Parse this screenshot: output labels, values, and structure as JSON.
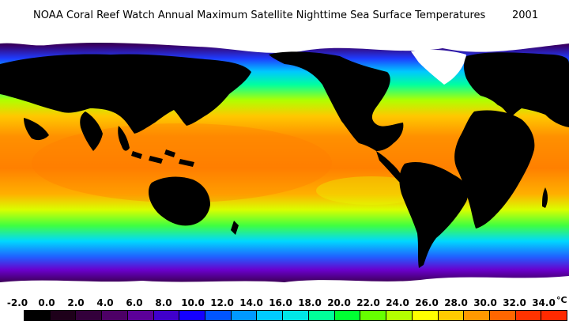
{
  "title": "NOAA Coral Reef Watch Annual Maximum Satellite Nighttime Sea Surface Temperatures",
  "year": "2001",
  "scale": {
    "labels": [
      "-2.0",
      "0.0",
      "2.0",
      "4.0",
      "6.0",
      "8.0",
      "10.0",
      "12.0",
      "14.0",
      "16.0",
      "18.0",
      "20.0",
      "22.0",
      "24.0",
      "26.0",
      "28.0",
      "30.0",
      "32.0",
      "34.0"
    ],
    "unit": "°C",
    "min": -2.0,
    "max": 34.0,
    "colors": [
      "#000000",
      "#1e001a",
      "#33003b",
      "#4d0066",
      "#5c0099",
      "#4000cc",
      "#1400ff",
      "#0055ff",
      "#0099ff",
      "#00ccff",
      "#00e6e6",
      "#00ff99",
      "#00ff33",
      "#66ff00",
      "#b3ff00",
      "#ffff00",
      "#ffcc00",
      "#ff9900",
      "#ff6600",
      "#ff3300",
      "#ff2a00"
    ]
  }
}
